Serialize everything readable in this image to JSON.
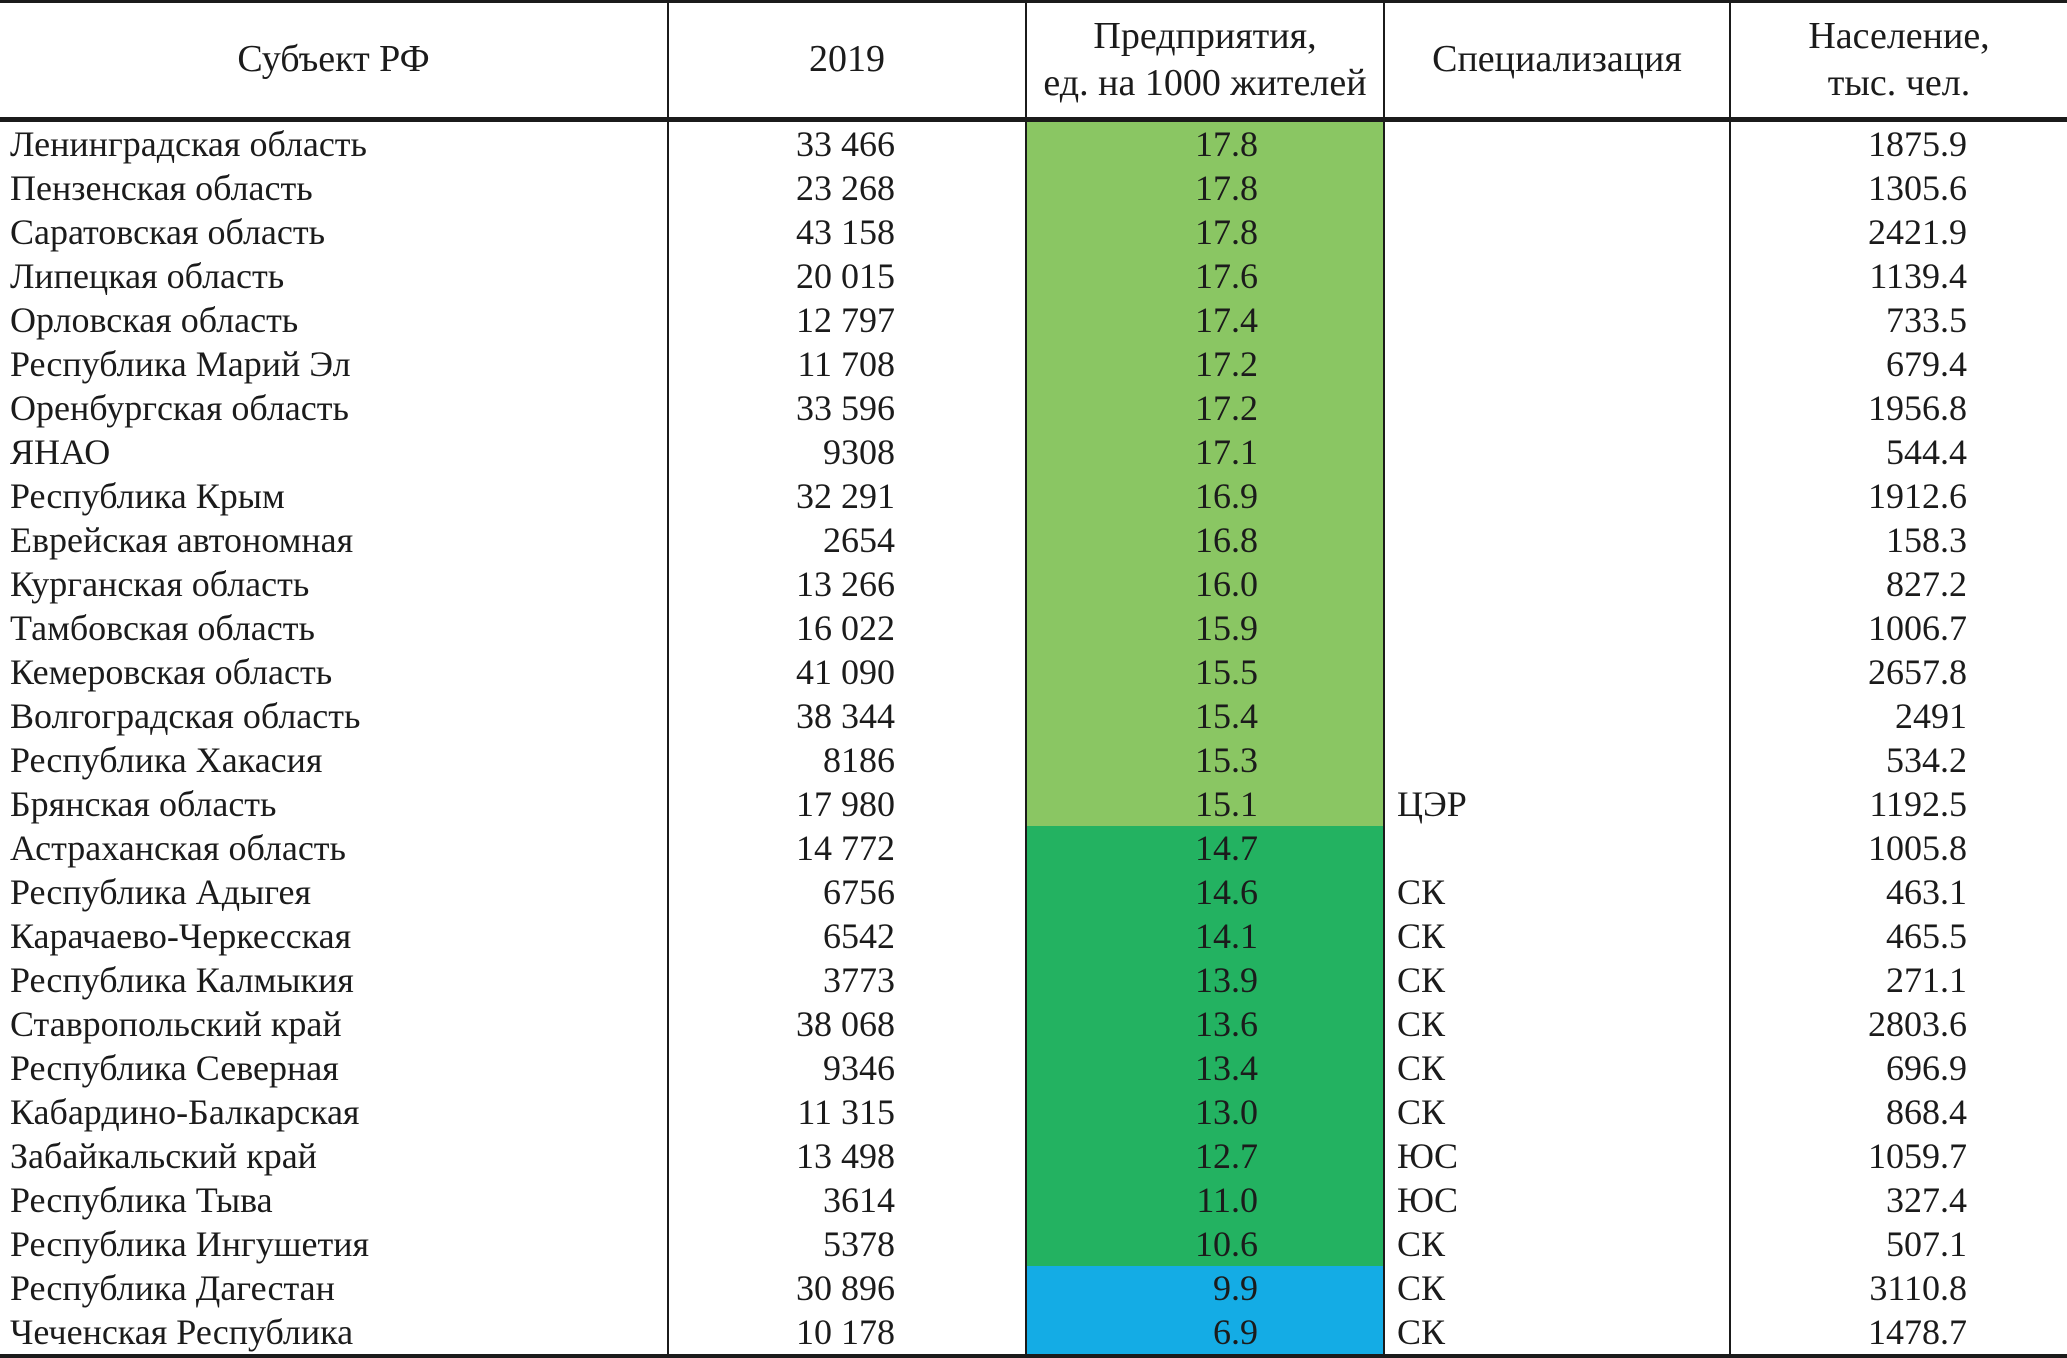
{
  "table": {
    "headers": {
      "region": "Субъект РФ",
      "year": "2019",
      "enterprises_line1": "Предприятия,",
      "enterprises_line2": "ед. на 1000 жителей",
      "specialization": "Специализация",
      "population_line1": "Население,",
      "population_line2": "тыс. чел."
    },
    "rows": [
      {
        "region": "Ленинградская область",
        "year_value": "33 466",
        "enterprises_per_1000": "17.8",
        "specialization": "",
        "population": "1875.9",
        "band": "light"
      },
      {
        "region": "Пензенская область",
        "year_value": "23 268",
        "enterprises_per_1000": "17.8",
        "specialization": "",
        "population": "1305.6",
        "band": "light"
      },
      {
        "region": "Саратовская область",
        "year_value": "43 158",
        "enterprises_per_1000": "17.8",
        "specialization": "",
        "population": "2421.9",
        "band": "light"
      },
      {
        "region": "Липецкая область",
        "year_value": "20 015",
        "enterprises_per_1000": "17.6",
        "specialization": "",
        "population": "1139.4",
        "band": "light"
      },
      {
        "region": "Орловская область",
        "year_value": "12 797",
        "enterprises_per_1000": "17.4",
        "specialization": "",
        "population": "733.5",
        "band": "light"
      },
      {
        "region": "Республика Марий Эл",
        "year_value": "11 708",
        "enterprises_per_1000": "17.2",
        "specialization": "",
        "population": "679.4",
        "band": "light"
      },
      {
        "region": "Оренбургская область",
        "year_value": "33 596",
        "enterprises_per_1000": "17.2",
        "specialization": "",
        "population": "1956.8",
        "band": "light"
      },
      {
        "region": "ЯНАО",
        "year_value": "9308",
        "enterprises_per_1000": "17.1",
        "specialization": "",
        "population": "544.4",
        "band": "light"
      },
      {
        "region": "Республика Крым",
        "year_value": "32 291",
        "enterprises_per_1000": "16.9",
        "specialization": "",
        "population": "1912.6",
        "band": "light"
      },
      {
        "region": "Еврейская автономная",
        "year_value": "2654",
        "enterprises_per_1000": "16.8",
        "specialization": "",
        "population": "158.3",
        "band": "light"
      },
      {
        "region": "Курганская область",
        "year_value": "13 266",
        "enterprises_per_1000": "16.0",
        "specialization": "",
        "population": "827.2",
        "band": "light"
      },
      {
        "region": "Тамбовская область",
        "year_value": "16 022",
        "enterprises_per_1000": "15.9",
        "specialization": "",
        "population": "1006.7",
        "band": "light"
      },
      {
        "region": "Кемеровская область",
        "year_value": "41 090",
        "enterprises_per_1000": "15.5",
        "specialization": "",
        "population": "2657.8",
        "band": "light"
      },
      {
        "region": "Волгоградская область",
        "year_value": "38 344",
        "enterprises_per_1000": "15.4",
        "specialization": "",
        "population": "2491",
        "band": "light"
      },
      {
        "region": "Республика Хакасия",
        "year_value": "8186",
        "enterprises_per_1000": "15.3",
        "specialization": "",
        "population": "534.2",
        "band": "light"
      },
      {
        "region": "Брянская область",
        "year_value": "17 980",
        "enterprises_per_1000": "15.1",
        "specialization": "ЦЭР",
        "population": "1192.5",
        "band": "light"
      },
      {
        "region": "Астраханская область",
        "year_value": "14 772",
        "enterprises_per_1000": "14.7",
        "specialization": "",
        "population": "1005.8",
        "band": "green"
      },
      {
        "region": "Республика Адыгея",
        "year_value": "6756",
        "enterprises_per_1000": "14.6",
        "specialization": "СК",
        "population": "463.1",
        "band": "green"
      },
      {
        "region": "Карачаево-Черкесская",
        "year_value": "6542",
        "enterprises_per_1000": "14.1",
        "specialization": "СК",
        "population": "465.5",
        "band": "green"
      },
      {
        "region": "Республика Калмыкия",
        "year_value": "3773",
        "enterprises_per_1000": "13.9",
        "specialization": "СК",
        "population": "271.1",
        "band": "green"
      },
      {
        "region": "Ставропольский край",
        "year_value": "38 068",
        "enterprises_per_1000": "13.6",
        "specialization": "СК",
        "population": "2803.6",
        "band": "green"
      },
      {
        "region": "Республика Северная",
        "year_value": "9346",
        "enterprises_per_1000": "13.4",
        "specialization": "СК",
        "population": "696.9",
        "band": "green"
      },
      {
        "region": "Кабардино-Балкарская",
        "year_value": "11 315",
        "enterprises_per_1000": "13.0",
        "specialization": "СК",
        "population": "868.4",
        "band": "green"
      },
      {
        "region": "Забайкальский край",
        "year_value": "13 498",
        "enterprises_per_1000": "12.7",
        "specialization": "ЮС",
        "population": "1059.7",
        "band": "green"
      },
      {
        "region": "Республика Тыва",
        "year_value": "3614",
        "enterprises_per_1000": "11.0",
        "specialization": "ЮС",
        "population": "327.4",
        "band": "green"
      },
      {
        "region": "Республика Ингушетия",
        "year_value": "5378",
        "enterprises_per_1000": "10.6",
        "specialization": "СК",
        "population": "507.1",
        "band": "green"
      },
      {
        "region": "Республика Дагестан",
        "year_value": "30 896",
        "enterprises_per_1000": "9.9",
        "specialization": "СК",
        "population": "3110.8",
        "band": "blue"
      },
      {
        "region": "Чеченская Республика",
        "year_value": "10 178",
        "enterprises_per_1000": "6.9",
        "specialization": "СК",
        "population": "1478.7",
        "band": "blue"
      }
    ]
  },
  "colors": {
    "band_light_green": "#8AC663",
    "band_green": "#23B261",
    "band_blue": "#14ACE5",
    "ink": "#1B1B1B"
  }
}
